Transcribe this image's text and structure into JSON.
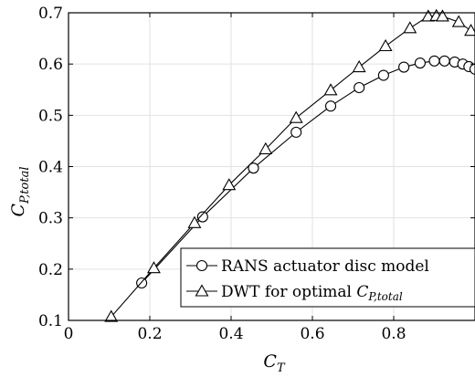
{
  "chart_data": {
    "type": "line",
    "xlabel": {
      "main": "C",
      "sub": "T"
    },
    "ylabel": {
      "main": "C",
      "sub": "P,total"
    },
    "xlim": [
      0,
      1.0
    ],
    "ylim": [
      0.1,
      0.7
    ],
    "xticks": [
      "0",
      "0.2",
      "0.4",
      "0.6",
      "0.8"
    ],
    "xtick_values": [
      0,
      0.2,
      0.4,
      0.6,
      0.8
    ],
    "yticks": [
      "0.1",
      "0.2",
      "0.3",
      "0.4",
      "0.5",
      "0.6",
      "0.7"
    ],
    "ytick_values": [
      0.1,
      0.2,
      0.3,
      0.4,
      0.5,
      0.6,
      0.7
    ],
    "grid": true,
    "legend_position": "bottom-right",
    "series": [
      {
        "name": "RANS actuator disc model",
        "legend_parts": {
          "text": "RANS actuator disc model"
        },
        "marker": "circle",
        "x": [
          0.18,
          0.33,
          0.455,
          0.56,
          0.645,
          0.715,
          0.775,
          0.825,
          0.865,
          0.9,
          0.925,
          0.95,
          0.97,
          0.985,
          1.0
        ],
        "y": [
          0.173,
          0.302,
          0.397,
          0.467,
          0.518,
          0.554,
          0.578,
          0.594,
          0.602,
          0.606,
          0.606,
          0.604,
          0.6,
          0.595,
          0.59
        ]
      },
      {
        "name": "DWT for optimal C_P,total",
        "legend_parts": {
          "text": "DWT for optimal ",
          "math": "C",
          "sub": "P,total"
        },
        "marker": "triangle",
        "x": [
          0.105,
          0.21,
          0.31,
          0.395,
          0.485,
          0.56,
          0.645,
          0.715,
          0.78,
          0.84,
          0.885,
          0.905,
          0.92,
          0.96,
          0.99
        ],
        "y": [
          0.107,
          0.202,
          0.29,
          0.364,
          0.434,
          0.495,
          0.549,
          0.594,
          0.635,
          0.67,
          0.693,
          0.694,
          0.693,
          0.682,
          0.665
        ]
      }
    ]
  }
}
